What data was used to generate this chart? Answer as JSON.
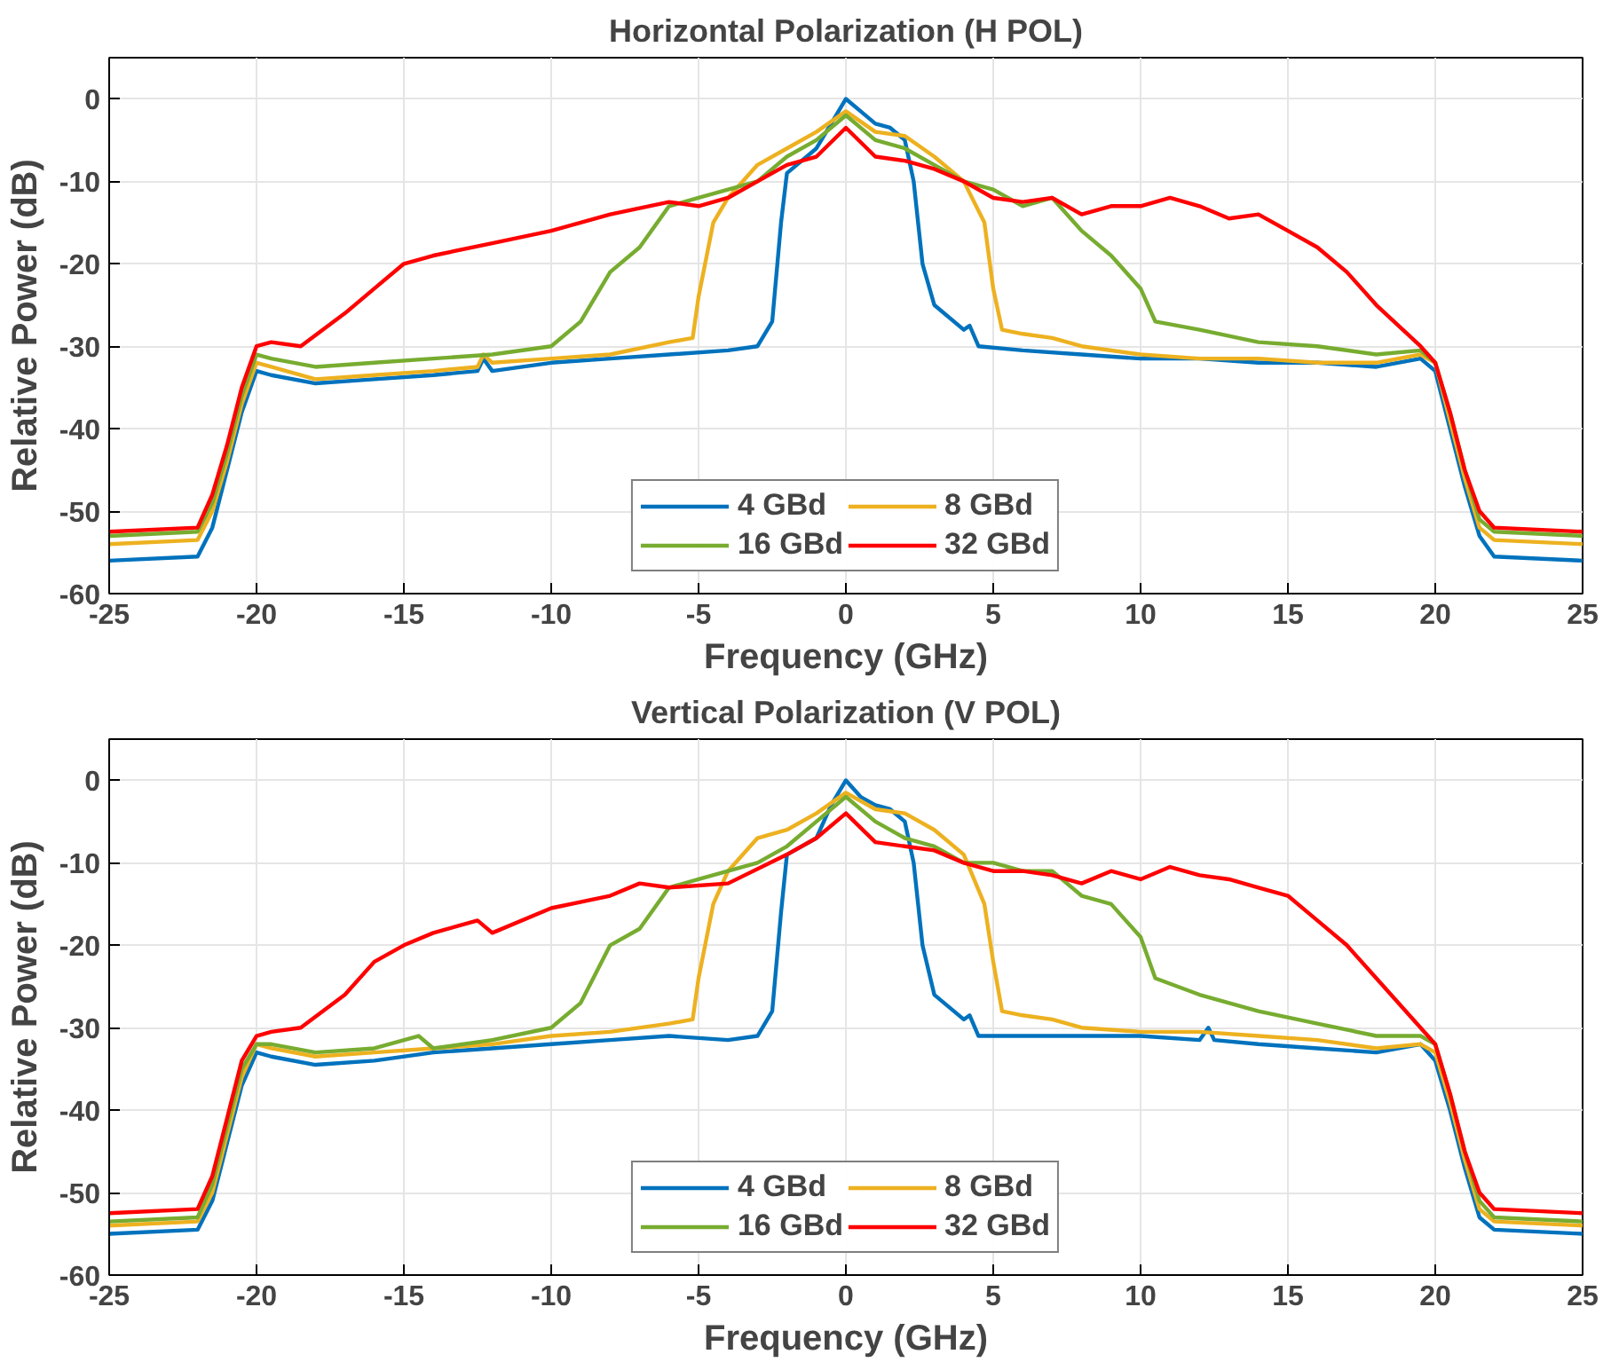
{
  "chart_data": [
    {
      "type": "line",
      "title": "Horizontal Polarization (H POL)",
      "xlabel": "Frequency (GHz)",
      "ylabel": "Relative Power (dB)",
      "xlim": [
        -25,
        25
      ],
      "ylim": [
        -60,
        5
      ],
      "xticks": [
        -25,
        -20,
        -15,
        -10,
        -5,
        0,
        5,
        10,
        15,
        20,
        25
      ],
      "yticks": [
        -60,
        -50,
        -40,
        -30,
        -20,
        -10,
        0
      ],
      "grid": true,
      "legend": "bottom",
      "line_style": "solid",
      "marker": "none",
      "series": [
        {
          "name": "4 GBd",
          "color": "#0072bd",
          "x": [
            -25,
            -22,
            -21.5,
            -21,
            -20.5,
            -20,
            -19.5,
            -18,
            -16,
            -14,
            -12.5,
            -12.3,
            -12,
            -10,
            -8,
            -6,
            -4,
            -3,
            -2.5,
            -2.2,
            -2,
            -1,
            -0.5,
            0,
            0.5,
            1,
            1.5,
            2,
            2.3,
            2.6,
            3,
            4,
            4.2,
            4.5,
            6,
            8,
            10,
            12,
            14,
            16,
            18,
            19.5,
            20,
            20.5,
            21,
            21.5,
            22,
            25
          ],
          "values": [
            -56,
            -55.5,
            -52,
            -45,
            -38,
            -33,
            -33.5,
            -34.5,
            -34,
            -33.5,
            -33,
            -31.5,
            -33,
            -32,
            -31.5,
            -31,
            -30.5,
            -30,
            -27,
            -15,
            -9,
            -6,
            -3,
            0,
            -1.5,
            -3,
            -3.5,
            -5,
            -10,
            -20,
            -25,
            -28,
            -27.5,
            -30,
            -30.5,
            -31,
            -31.5,
            -31.5,
            -32,
            -32,
            -32.5,
            -31.5,
            -33,
            -40,
            -47,
            -53,
            -55.5,
            -56
          ]
        },
        {
          "name": "8 GBd",
          "color": "#edb120",
          "x": [
            -25,
            -22,
            -21.5,
            -21,
            -20.5,
            -20,
            -19.5,
            -18,
            -16,
            -14,
            -12.5,
            -12.3,
            -12,
            -10,
            -8,
            -6,
            -5.2,
            -5,
            -4.5,
            -4,
            -3,
            -2,
            -1,
            0,
            1,
            2,
            3,
            4,
            4.7,
            5,
            5.3,
            6,
            7,
            8,
            10,
            12,
            14,
            16,
            18,
            19.5,
            20,
            20.5,
            21,
            21.5,
            22,
            25
          ],
          "values": [
            -54,
            -53.5,
            -50,
            -44,
            -37,
            -32,
            -32.5,
            -34,
            -33.5,
            -33,
            -32.5,
            -31,
            -32,
            -31.5,
            -31,
            -29.5,
            -29,
            -24,
            -15,
            -12,
            -8,
            -6,
            -4,
            -1.5,
            -4,
            -4.5,
            -7,
            -10,
            -15,
            -23,
            -28,
            -28.5,
            -29,
            -30,
            -31,
            -31.5,
            -31.5,
            -32,
            -32,
            -31,
            -32,
            -39,
            -46,
            -52,
            -53.5,
            -54
          ]
        },
        {
          "name": "16 GBd",
          "color": "#77ac30",
          "x": [
            -25,
            -22,
            -21.5,
            -21,
            -20.5,
            -20,
            -19.5,
            -18,
            -16,
            -14,
            -12,
            -10,
            -9,
            -8,
            -7,
            -6,
            -5,
            -4,
            -3,
            -2,
            -1,
            0,
            1,
            2,
            3,
            4,
            5,
            6,
            7,
            8,
            9,
            10,
            10.5,
            12,
            14,
            16,
            18,
            19.5,
            20,
            20.5,
            21,
            21.5,
            22,
            25
          ],
          "values": [
            -53,
            -52.5,
            -49,
            -43,
            -36,
            -31,
            -31.5,
            -32.5,
            -32,
            -31.5,
            -31,
            -30,
            -27,
            -21,
            -18,
            -13,
            -12,
            -11,
            -10,
            -7,
            -5,
            -2,
            -5,
            -6,
            -8,
            -10,
            -11,
            -13,
            -12,
            -16,
            -19,
            -23,
            -27,
            -28,
            -29.5,
            -30,
            -31,
            -30.5,
            -32,
            -38,
            -45,
            -51,
            -52.5,
            -53
          ]
        },
        {
          "name": "32 GBd",
          "color": "#ff0000",
          "x": [
            -25,
            -22,
            -21.5,
            -21,
            -20.5,
            -20,
            -19.5,
            -18.5,
            -17,
            -16,
            -15,
            -14,
            -12,
            -10,
            -8,
            -6,
            -5,
            -4,
            -3,
            -2,
            -1,
            0,
            1,
            2,
            3,
            4,
            5,
            6,
            7,
            8,
            9,
            10,
            11,
            12,
            13,
            14,
            15,
            16,
            17,
            18,
            19.5,
            20,
            20.5,
            21,
            21.5,
            22,
            25
          ],
          "values": [
            -52.5,
            -52,
            -48,
            -42,
            -35,
            -30,
            -29.5,
            -30,
            -26,
            -23,
            -20,
            -19,
            -17.5,
            -16,
            -14,
            -12.5,
            -13,
            -12,
            -10,
            -8,
            -7,
            -3.5,
            -7,
            -7.5,
            -8.5,
            -10,
            -12,
            -12.5,
            -12,
            -14,
            -13,
            -13,
            -12,
            -13,
            -14.5,
            -14,
            -16,
            -18,
            -21,
            -25,
            -30,
            -32,
            -38,
            -45,
            -50,
            -52,
            -52.5
          ]
        }
      ]
    },
    {
      "type": "line",
      "title": "Vertical Polarization (V POL)",
      "xlabel": "Frequency (GHz)",
      "ylabel": "Relative Power (dB)",
      "xlim": [
        -25,
        25
      ],
      "ylim": [
        -60,
        5
      ],
      "xticks": [
        -25,
        -20,
        -15,
        -10,
        -5,
        0,
        5,
        10,
        15,
        20,
        25
      ],
      "yticks": [
        -60,
        -50,
        -40,
        -30,
        -20,
        -10,
        0
      ],
      "grid": true,
      "legend": "bottom",
      "line_style": "solid",
      "marker": "none",
      "series": [
        {
          "name": "4 GBd",
          "color": "#0072bd",
          "x": [
            -25,
            -22,
            -21.5,
            -21,
            -20.5,
            -20,
            -19.5,
            -18,
            -16,
            -14,
            -12,
            -10,
            -8,
            -6,
            -4,
            -3,
            -2.5,
            -2.2,
            -2,
            -1,
            -0.5,
            0,
            0.5,
            1,
            1.5,
            2,
            2.3,
            2.6,
            3,
            4,
            4.2,
            4.5,
            6,
            8,
            10,
            12,
            12.3,
            12.5,
            14,
            16,
            18,
            19.5,
            20,
            20.5,
            21,
            21.5,
            22,
            25
          ],
          "values": [
            -55,
            -54.5,
            -51,
            -44,
            -37,
            -33,
            -33.5,
            -34.5,
            -34,
            -33,
            -32.5,
            -32,
            -31.5,
            -31,
            -31.5,
            -31,
            -28,
            -16,
            -9,
            -7,
            -3,
            0,
            -2,
            -3,
            -3.5,
            -5,
            -10,
            -20,
            -26,
            -29,
            -28.5,
            -31,
            -31,
            -31,
            -31,
            -31.5,
            -30,
            -31.5,
            -32,
            -32.5,
            -33,
            -32,
            -34,
            -40,
            -47,
            -53,
            -54.5,
            -55
          ]
        },
        {
          "name": "8 GBd",
          "color": "#edb120",
          "x": [
            -25,
            -22,
            -21.5,
            -21,
            -20.5,
            -20,
            -19.5,
            -18,
            -16,
            -14,
            -12,
            -10,
            -8,
            -6,
            -5.2,
            -5,
            -4.5,
            -4,
            -3,
            -2,
            -1,
            0,
            1,
            2,
            3,
            4,
            4.7,
            5,
            5.3,
            6,
            7,
            8,
            10,
            12,
            14,
            16,
            18,
            19.5,
            20,
            20.5,
            21,
            21.5,
            22,
            25
          ],
          "values": [
            -54,
            -53.5,
            -50,
            -43,
            -36,
            -32,
            -32.5,
            -33.5,
            -33,
            -32.5,
            -32,
            -31,
            -30.5,
            -29.5,
            -29,
            -24,
            -15,
            -11,
            -7,
            -6,
            -4,
            -1.5,
            -3.5,
            -4,
            -6,
            -9,
            -15,
            -22,
            -28,
            -28.5,
            -29,
            -30,
            -30.5,
            -30.5,
            -31,
            -31.5,
            -32.5,
            -32,
            -33,
            -39,
            -46,
            -52,
            -53.5,
            -54
          ]
        },
        {
          "name": "16 GBd",
          "color": "#77ac30",
          "x": [
            -25,
            -22,
            -21.5,
            -21,
            -20.5,
            -20,
            -19.5,
            -18,
            -16,
            -14.5,
            -14,
            -12,
            -10,
            -9,
            -8,
            -7,
            -6,
            -5,
            -4,
            -3,
            -2,
            -1,
            0,
            1,
            2,
            3,
            4,
            5,
            6,
            7,
            8,
            9,
            10,
            10.5,
            12,
            14,
            16,
            18,
            19.5,
            20,
            20.5,
            21,
            21.5,
            22,
            25
          ],
          "values": [
            -53.5,
            -53,
            -49,
            -42,
            -35,
            -32,
            -32,
            -33,
            -32.5,
            -31,
            -32.5,
            -31.5,
            -30,
            -27,
            -20,
            -18,
            -13,
            -12,
            -11,
            -10,
            -8,
            -5,
            -2,
            -5,
            -7,
            -8,
            -10,
            -10,
            -11,
            -11,
            -14,
            -15,
            -19,
            -24,
            -26,
            -28,
            -29.5,
            -31,
            -31,
            -32,
            -38,
            -45,
            -51,
            -53,
            -53.5
          ]
        },
        {
          "name": "32 GBd",
          "color": "#ff0000",
          "x": [
            -25,
            -22,
            -21.5,
            -21,
            -20.5,
            -20,
            -19.5,
            -18.5,
            -17,
            -16,
            -15,
            -14,
            -12.5,
            -12,
            -10,
            -8,
            -7,
            -6,
            -4,
            -2,
            -1,
            0,
            1,
            2,
            3,
            4,
            5,
            6,
            7,
            8,
            9,
            10,
            11,
            12,
            13,
            14,
            15,
            16,
            17,
            18,
            19.5,
            20,
            20.5,
            21,
            21.5,
            22,
            25
          ],
          "values": [
            -52.5,
            -52,
            -48,
            -41,
            -34,
            -31,
            -30.5,
            -30,
            -26,
            -22,
            -20,
            -18.5,
            -17,
            -18.5,
            -15.5,
            -14,
            -12.5,
            -13,
            -12.5,
            -9,
            -7,
            -4,
            -7.5,
            -8,
            -8.5,
            -10,
            -11,
            -11,
            -11.5,
            -12.5,
            -11,
            -12,
            -10.5,
            -11.5,
            -12,
            -13,
            -14,
            -17,
            -20,
            -24,
            -30,
            -32,
            -38,
            -45,
            -50,
            -52,
            -52.5
          ]
        }
      ]
    }
  ]
}
